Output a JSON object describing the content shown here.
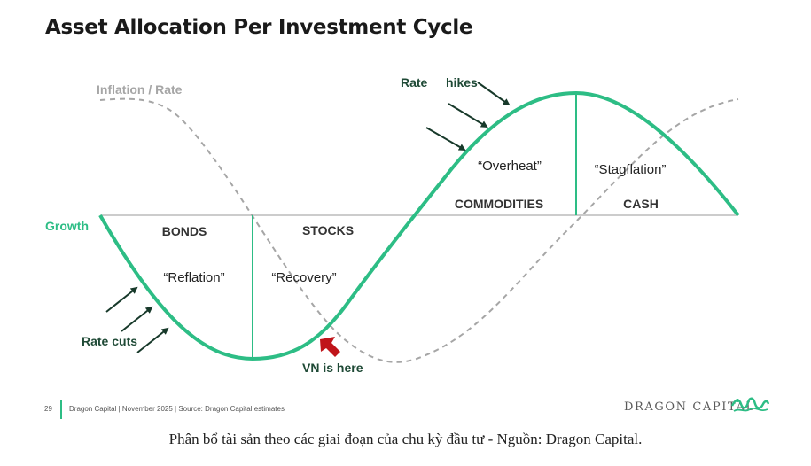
{
  "title": "Asset Allocation Per Investment Cycle",
  "legend": {
    "inflation_label": "Inflation / Rate",
    "growth_label": "Growth"
  },
  "phases": {
    "bonds": "BONDS",
    "stocks": "STOCKS",
    "commodities": "COMMODITIES",
    "cash": "CASH",
    "reflation": "“Reflation”",
    "recovery": "“Recovery”",
    "overheat": "“Overheat”",
    "stagflation": "“Stagflation”"
  },
  "annotations": {
    "rate_cuts": "Rate cuts",
    "rate": "Rate",
    "hikes": "hikes",
    "vn_here": "VN is here"
  },
  "footer": {
    "page_number": "29",
    "source": "Dragon Capital | November 2025 | Source: Dragon Capital estimates",
    "brand": "DRAGON CAPITAL"
  },
  "caption": "Phân bổ tài sản theo các giai đoạn của chu kỳ đầu tư - Nguồn: Dragon Capital.",
  "colors": {
    "growth": "#2dbd85",
    "inflation": "#a6a6a6",
    "axis": "#9a9a9a",
    "label_dark": "#1f4a36",
    "arrow_dark": "#17392a",
    "vn_arrow": "#c0141a",
    "growth_text": "#2dbd85"
  }
}
